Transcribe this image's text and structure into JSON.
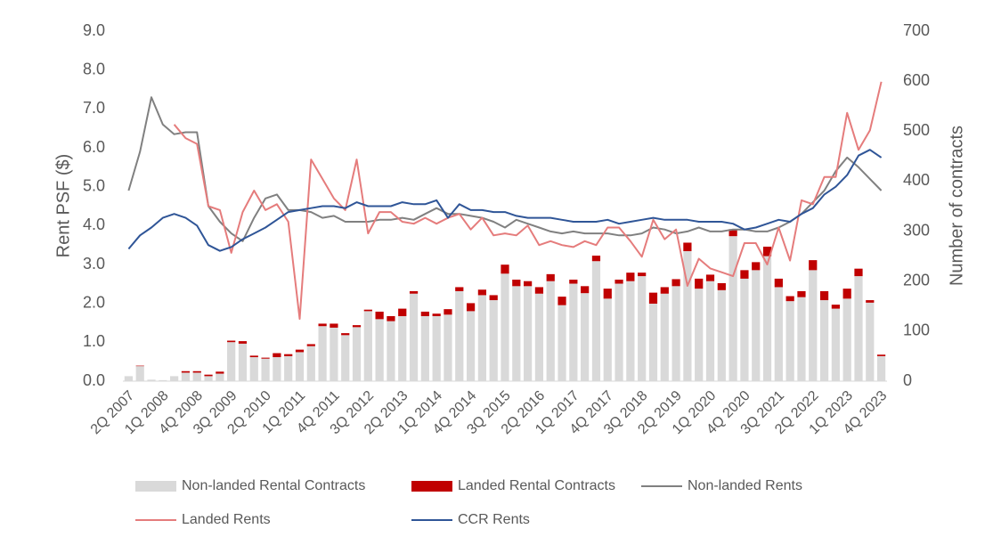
{
  "chart_data": {
    "type": "combo",
    "stacked": true,
    "y_label": "Rent PSF ($)",
    "y2_label": "Number of contracts",
    "categories": [
      "2Q 2007",
      null,
      null,
      "1Q 2008",
      null,
      null,
      "4Q 2008",
      null,
      null,
      "3Q 2009",
      null,
      null,
      "2Q 2010",
      null,
      null,
      "1Q 2011",
      null,
      null,
      "4Q 2011",
      null,
      null,
      "3Q 2012",
      null,
      null,
      "2Q 2013",
      null,
      null,
      "1Q 2014",
      null,
      null,
      "4Q 2014",
      null,
      null,
      "3Q 2015",
      null,
      null,
      "2Q 2016",
      null,
      null,
      "1Q 2017",
      null,
      null,
      "4Q 2017",
      null,
      null,
      "3Q 2018",
      null,
      null,
      "2Q 2019",
      null,
      null,
      "1Q 2020",
      null,
      null,
      "4Q 2020",
      null,
      null,
      "3Q 2021",
      null,
      null,
      "2Q 2022",
      null,
      null,
      "1Q 2023",
      null,
      null,
      "4Q 2023"
    ],
    "ylim": [
      0,
      9
    ],
    "yticks": [
      {
        "value": 0,
        "label": "0.0"
      },
      {
        "value": 1,
        "label": "1.0"
      },
      {
        "value": 2,
        "label": "2.0"
      },
      {
        "value": 3,
        "label": "3.0"
      },
      {
        "value": 4,
        "label": "4.0"
      },
      {
        "value": 5,
        "label": "5.0"
      },
      {
        "value": 6,
        "label": "6.0"
      },
      {
        "value": 7,
        "label": "7.0"
      },
      {
        "value": 8,
        "label": "8.0"
      },
      {
        "value": 9,
        "label": "9.0"
      }
    ],
    "y2lim": [
      0,
      700
    ],
    "y2ticks": [
      0,
      100,
      200,
      300,
      400,
      500,
      600,
      700
    ],
    "series": [
      {
        "name": "Non-landed Rental Contracts",
        "type": "bar",
        "axis": "y2",
        "color": "#d9d9d9",
        "values": [
          10,
          30,
          3,
          2,
          10,
          17,
          17,
          10,
          15,
          78,
          75,
          48,
          45,
          48,
          50,
          58,
          70,
          110,
          107,
          92,
          108,
          140,
          124,
          120,
          130,
          175,
          130,
          130,
          133,
          180,
          140,
          172,
          162,
          215,
          190,
          190,
          175,
          200,
          152,
          195,
          176,
          240,
          165,
          195,
          200,
          210,
          155,
          175,
          190,
          260,
          185,
          200,
          182,
          290,
          205,
          222,
          250,
          188,
          160,
          168,
          222,
          162,
          145,
          165,
          210,
          157,
          50
        ]
      },
      {
        "name": "Landed Rental Contracts",
        "type": "bar",
        "axis": "y2",
        "color": "#c00000",
        "values": [
          0,
          1,
          0,
          0,
          0,
          3,
          3,
          3,
          4,
          3,
          5,
          3,
          2,
          8,
          4,
          5,
          4,
          5,
          8,
          4,
          4,
          3,
          15,
          10,
          15,
          5,
          9,
          5,
          11,
          8,
          16,
          11,
          10,
          18,
          13,
          10,
          13,
          14,
          17,
          8,
          14,
          11,
          20,
          8,
          17,
          7,
          22,
          13,
          14,
          17,
          20,
          13,
          14,
          14,
          17,
          16,
          19,
          17,
          10,
          12,
          20,
          18,
          8,
          20,
          15,
          5,
          3
        ]
      },
      {
        "name": "Non-landed Rents",
        "type": "line",
        "color": "#808080",
        "values": [
          4.9,
          5.9,
          7.3,
          6.6,
          6.35,
          6.4,
          6.4,
          4.5,
          4.1,
          3.8,
          3.6,
          4.2,
          4.7,
          4.8,
          4.4,
          4.4,
          4.35,
          4.2,
          4.25,
          4.1,
          4.1,
          4.1,
          4.15,
          4.15,
          4.2,
          4.15,
          4.3,
          4.45,
          4.3,
          4.3,
          4.25,
          4.2,
          4.1,
          3.95,
          4.15,
          4.05,
          3.95,
          3.85,
          3.8,
          3.85,
          3.8,
          3.8,
          3.8,
          3.75,
          3.75,
          3.8,
          3.95,
          3.9,
          3.8,
          3.85,
          3.95,
          3.85,
          3.85,
          3.9,
          3.9,
          3.85,
          3.85,
          3.95,
          4.1,
          4.3,
          4.6,
          4.9,
          5.4,
          5.75,
          5.5,
          5.2,
          4.9
        ]
      },
      {
        "name": "Landed Rents",
        "type": "line",
        "color": "#e57c7c",
        "values": [
          null,
          null,
          null,
          null,
          6.6,
          6.25,
          6.1,
          4.5,
          4.4,
          3.3,
          4.35,
          4.9,
          4.4,
          4.55,
          4.1,
          1.6,
          5.7,
          5.2,
          4.7,
          4.4,
          5.7,
          3.8,
          4.35,
          4.35,
          4.1,
          4.05,
          4.2,
          4.05,
          4.2,
          4.3,
          3.9,
          4.2,
          3.75,
          3.8,
          3.75,
          4.0,
          3.5,
          3.6,
          3.5,
          3.45,
          3.6,
          3.5,
          3.95,
          3.95,
          3.6,
          3.2,
          4.15,
          3.65,
          3.9,
          2.45,
          3.15,
          2.9,
          2.8,
          2.7,
          3.55,
          3.55,
          3.0,
          3.95,
          3.1,
          4.65,
          4.55,
          5.25,
          5.25,
          6.9,
          5.95,
          6.45,
          7.7
        ]
      },
      {
        "name": "CCR Rents",
        "type": "line",
        "color": "#2f5597",
        "values": [
          3.4,
          3.75,
          3.95,
          4.2,
          4.3,
          4.2,
          4.0,
          3.5,
          3.35,
          3.45,
          3.65,
          3.8,
          3.95,
          4.15,
          4.35,
          4.4,
          4.45,
          4.5,
          4.5,
          4.45,
          4.6,
          4.5,
          4.5,
          4.5,
          4.6,
          4.55,
          4.55,
          4.65,
          4.2,
          4.55,
          4.4,
          4.4,
          4.35,
          4.35,
          4.25,
          4.2,
          4.2,
          4.2,
          4.15,
          4.1,
          4.1,
          4.1,
          4.15,
          4.05,
          4.1,
          4.15,
          4.2,
          4.15,
          4.15,
          4.15,
          4.1,
          4.1,
          4.1,
          4.05,
          3.9,
          3.95,
          4.05,
          4.15,
          4.1,
          4.3,
          4.45,
          4.8,
          5.0,
          5.3,
          5.8,
          5.95,
          5.75
        ]
      }
    ]
  }
}
